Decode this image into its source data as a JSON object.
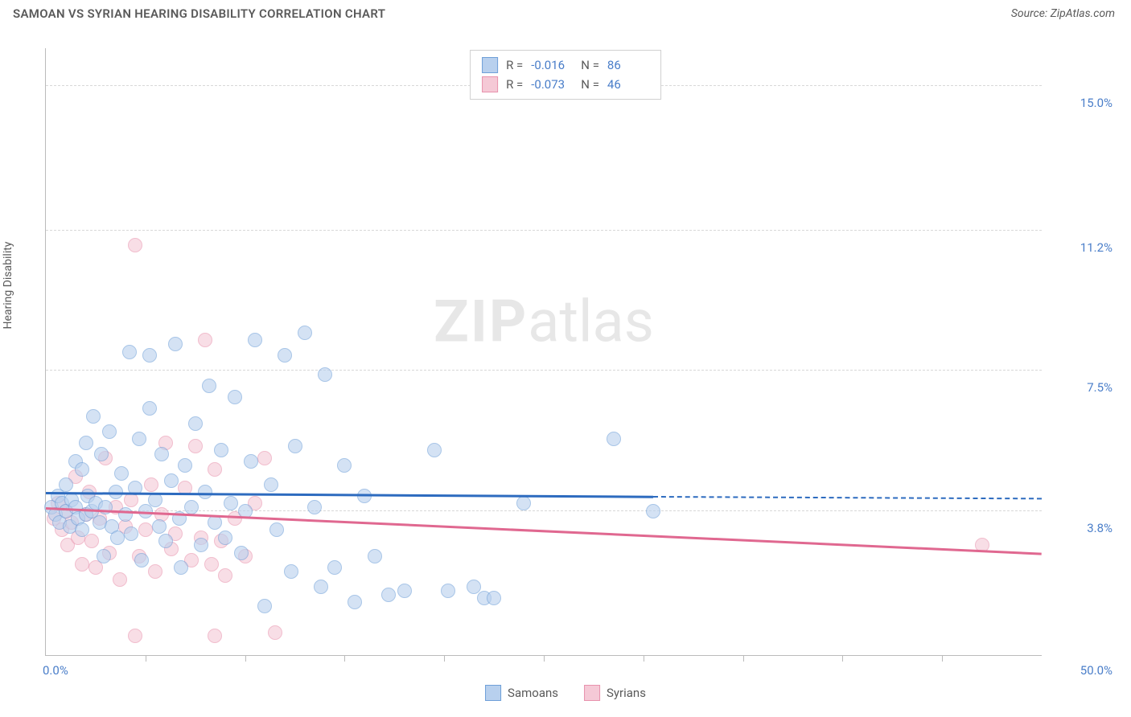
{
  "header": {
    "title": "SAMOAN VS SYRIAN HEARING DISABILITY CORRELATION CHART",
    "source_prefix": "Source: ",
    "source_name": "ZipAtlas.com"
  },
  "axes": {
    "ylabel": "Hearing Disability",
    "xmin": 0,
    "xmax": 50,
    "ymin": 0,
    "ymax": 16,
    "xtick_min_label": "0.0%",
    "xtick_max_label": "50.0%",
    "yticks": [
      {
        "value": 3.8,
        "label": "3.8%"
      },
      {
        "value": 7.5,
        "label": "7.5%"
      },
      {
        "value": 11.2,
        "label": "11.2%"
      },
      {
        "value": 15.0,
        "label": "15.0%"
      }
    ],
    "xtick_positions": [
      5,
      10,
      15,
      20,
      25,
      30,
      35,
      40,
      45
    ]
  },
  "watermark": {
    "bold": "ZIP",
    "rest": "atlas"
  },
  "colors": {
    "series1_fill": "#b8d0ee",
    "series1_stroke": "#6f9fd8",
    "series1_line": "#2d6bbf",
    "series2_fill": "#f5c9d6",
    "series2_stroke": "#e892ad",
    "series2_line": "#e06890",
    "grid": "#d8d8d8",
    "axis": "#bbbbbb",
    "ylabel_color": "#4a7ec9"
  },
  "legend_stats": {
    "rows": [
      {
        "series": 1,
        "r_label": "R =",
        "r_value": "-0.016",
        "n_label": "N =",
        "n_value": "86"
      },
      {
        "series": 2,
        "r_label": "R =",
        "r_value": "-0.073",
        "n_label": "N =",
        "n_value": "46"
      }
    ]
  },
  "bottom_legend": {
    "items": [
      {
        "series": 1,
        "label": "Samoans"
      },
      {
        "series": 2,
        "label": "Syrians"
      }
    ]
  },
  "trend_lines": {
    "series1": {
      "x1": 0,
      "y1": 4.3,
      "x2_solid": 30.5,
      "y2_solid": 4.2,
      "x2_dash": 50,
      "y2_dash": 4.15
    },
    "series2": {
      "x1": 0,
      "y1": 3.9,
      "x2": 50,
      "y2": 2.7
    }
  },
  "series1_points": [
    {
      "x": 0.3,
      "y": 3.9
    },
    {
      "x": 0.5,
      "y": 3.7
    },
    {
      "x": 0.6,
      "y": 4.2
    },
    {
      "x": 0.7,
      "y": 3.5
    },
    {
      "x": 0.8,
      "y": 4.0
    },
    {
      "x": 1.0,
      "y": 3.8
    },
    {
      "x": 1.0,
      "y": 4.5
    },
    {
      "x": 1.2,
      "y": 3.4
    },
    {
      "x": 1.3,
      "y": 4.1
    },
    {
      "x": 1.5,
      "y": 3.9
    },
    {
      "x": 1.5,
      "y": 5.1
    },
    {
      "x": 1.6,
      "y": 3.6
    },
    {
      "x": 1.8,
      "y": 4.9
    },
    {
      "x": 1.8,
      "y": 3.3
    },
    {
      "x": 2.0,
      "y": 3.7
    },
    {
      "x": 2.0,
      "y": 5.6
    },
    {
      "x": 2.1,
      "y": 4.2
    },
    {
      "x": 2.3,
      "y": 3.8
    },
    {
      "x": 2.4,
      "y": 6.3
    },
    {
      "x": 2.5,
      "y": 4.0
    },
    {
      "x": 2.7,
      "y": 3.5
    },
    {
      "x": 2.8,
      "y": 5.3
    },
    {
      "x": 2.9,
      "y": 2.6
    },
    {
      "x": 3.0,
      "y": 3.9
    },
    {
      "x": 3.2,
      "y": 5.9
    },
    {
      "x": 3.3,
      "y": 3.4
    },
    {
      "x": 3.5,
      "y": 4.3
    },
    {
      "x": 3.6,
      "y": 3.1
    },
    {
      "x": 3.8,
      "y": 4.8
    },
    {
      "x": 4.0,
      "y": 3.7
    },
    {
      "x": 4.2,
      "y": 8.0
    },
    {
      "x": 4.3,
      "y": 3.2
    },
    {
      "x": 4.5,
      "y": 4.4
    },
    {
      "x": 4.7,
      "y": 5.7
    },
    {
      "x": 4.8,
      "y": 2.5
    },
    {
      "x": 5.0,
      "y": 3.8
    },
    {
      "x": 5.2,
      "y": 7.9
    },
    {
      "x": 5.2,
      "y": 6.5
    },
    {
      "x": 5.5,
      "y": 4.1
    },
    {
      "x": 5.7,
      "y": 3.4
    },
    {
      "x": 5.8,
      "y": 5.3
    },
    {
      "x": 6.0,
      "y": 3.0
    },
    {
      "x": 6.3,
      "y": 4.6
    },
    {
      "x": 6.5,
      "y": 8.2
    },
    {
      "x": 6.7,
      "y": 3.6
    },
    {
      "x": 6.8,
      "y": 2.3
    },
    {
      "x": 7.0,
      "y": 5.0
    },
    {
      "x": 7.3,
      "y": 3.9
    },
    {
      "x": 7.5,
      "y": 6.1
    },
    {
      "x": 7.8,
      "y": 2.9
    },
    {
      "x": 8.0,
      "y": 4.3
    },
    {
      "x": 8.2,
      "y": 7.1
    },
    {
      "x": 8.5,
      "y": 3.5
    },
    {
      "x": 8.8,
      "y": 5.4
    },
    {
      "x": 9.0,
      "y": 3.1
    },
    {
      "x": 9.3,
      "y": 4.0
    },
    {
      "x": 9.5,
      "y": 6.8
    },
    {
      "x": 9.8,
      "y": 2.7
    },
    {
      "x": 10.0,
      "y": 3.8
    },
    {
      "x": 10.3,
      "y": 5.1
    },
    {
      "x": 10.5,
      "y": 8.3
    },
    {
      "x": 11.0,
      "y": 1.3
    },
    {
      "x": 11.3,
      "y": 4.5
    },
    {
      "x": 11.6,
      "y": 3.3
    },
    {
      "x": 12.0,
      "y": 7.9
    },
    {
      "x": 12.3,
      "y": 2.2
    },
    {
      "x": 12.5,
      "y": 5.5
    },
    {
      "x": 13.0,
      "y": 8.5
    },
    {
      "x": 13.5,
      "y": 3.9
    },
    {
      "x": 13.8,
      "y": 1.8
    },
    {
      "x": 14.0,
      "y": 7.4
    },
    {
      "x": 14.5,
      "y": 2.3
    },
    {
      "x": 15.0,
      "y": 5.0
    },
    {
      "x": 15.5,
      "y": 1.4
    },
    {
      "x": 16.0,
      "y": 4.2
    },
    {
      "x": 16.5,
      "y": 2.6
    },
    {
      "x": 17.2,
      "y": 1.6
    },
    {
      "x": 18.0,
      "y": 1.7
    },
    {
      "x": 19.5,
      "y": 5.4
    },
    {
      "x": 20.2,
      "y": 1.7
    },
    {
      "x": 21.5,
      "y": 1.8
    },
    {
      "x": 22.0,
      "y": 1.5
    },
    {
      "x": 22.5,
      "y": 1.5
    },
    {
      "x": 24.0,
      "y": 4.0
    },
    {
      "x": 28.5,
      "y": 5.7
    },
    {
      "x": 30.5,
      "y": 3.8
    }
  ],
  "series2_points": [
    {
      "x": 0.4,
      "y": 3.6
    },
    {
      "x": 0.6,
      "y": 4.0
    },
    {
      "x": 0.8,
      "y": 3.3
    },
    {
      "x": 1.0,
      "y": 3.8
    },
    {
      "x": 1.1,
      "y": 2.9
    },
    {
      "x": 1.3,
      "y": 3.5
    },
    {
      "x": 1.5,
      "y": 4.7
    },
    {
      "x": 1.6,
      "y": 3.1
    },
    {
      "x": 1.8,
      "y": 2.4
    },
    {
      "x": 2.0,
      "y": 3.7
    },
    {
      "x": 2.2,
      "y": 4.3
    },
    {
      "x": 2.3,
      "y": 3.0
    },
    {
      "x": 2.5,
      "y": 2.3
    },
    {
      "x": 2.7,
      "y": 3.6
    },
    {
      "x": 3.0,
      "y": 5.2
    },
    {
      "x": 3.2,
      "y": 2.7
    },
    {
      "x": 3.5,
      "y": 3.9
    },
    {
      "x": 3.7,
      "y": 2.0
    },
    {
      "x": 4.0,
      "y": 3.4
    },
    {
      "x": 4.3,
      "y": 4.1
    },
    {
      "x": 4.5,
      "y": 10.8
    },
    {
      "x": 4.7,
      "y": 2.6
    },
    {
      "x": 5.0,
      "y": 3.3
    },
    {
      "x": 5.3,
      "y": 4.5
    },
    {
      "x": 5.5,
      "y": 2.2
    },
    {
      "x": 5.8,
      "y": 3.7
    },
    {
      "x": 6.0,
      "y": 5.6
    },
    {
      "x": 6.3,
      "y": 2.8
    },
    {
      "x": 6.5,
      "y": 3.2
    },
    {
      "x": 7.0,
      "y": 4.4
    },
    {
      "x": 7.3,
      "y": 2.5
    },
    {
      "x": 7.5,
      "y": 5.5
    },
    {
      "x": 7.8,
      "y": 3.1
    },
    {
      "x": 8.0,
      "y": 8.3
    },
    {
      "x": 8.3,
      "y": 2.4
    },
    {
      "x": 8.5,
      "y": 4.9
    },
    {
      "x": 8.8,
      "y": 3.0
    },
    {
      "x": 9.0,
      "y": 2.1
    },
    {
      "x": 9.5,
      "y": 3.6
    },
    {
      "x": 10.0,
      "y": 2.6
    },
    {
      "x": 10.5,
      "y": 4.0
    },
    {
      "x": 11.0,
      "y": 5.2
    },
    {
      "x": 11.5,
      "y": 0.6
    },
    {
      "x": 4.5,
      "y": 0.5
    },
    {
      "x": 8.5,
      "y": 0.5
    },
    {
      "x": 47.0,
      "y": 2.9
    }
  ]
}
